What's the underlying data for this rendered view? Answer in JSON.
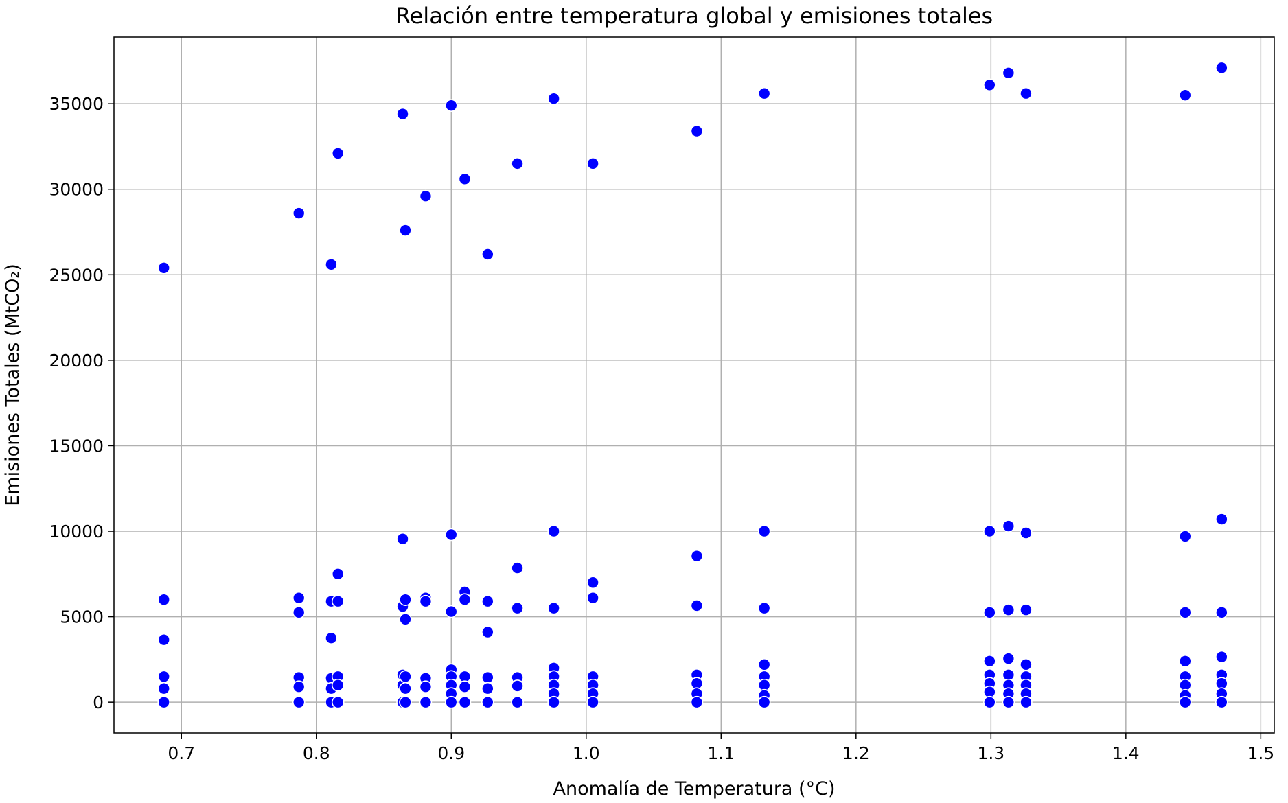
{
  "chart_data": {
    "type": "scatter",
    "title": "Relación entre temperatura global y emisiones totales",
    "xlabel": "Anomalía de Temperatura (°C)",
    "ylabel": "Emisiones Totales (MtCO₂)",
    "xlim": [
      0.65,
      1.51
    ],
    "ylim": [
      -1800,
      38900
    ],
    "xticks": [
      0.7,
      0.8,
      0.9,
      1.0,
      1.1,
      1.2,
      1.3,
      1.4,
      1.5
    ],
    "xtick_labels": [
      "0.7",
      "0.8",
      "0.9",
      "1.0",
      "1.1",
      "1.2",
      "1.3",
      "1.4",
      "1.5"
    ],
    "yticks": [
      0,
      5000,
      10000,
      15000,
      20000,
      25000,
      30000,
      35000
    ],
    "ytick_labels": [
      "0",
      "5000",
      "10000",
      "15000",
      "20000",
      "25000",
      "30000",
      "35000"
    ],
    "grid": true,
    "color": "#0000ff",
    "points": [
      [
        0.687,
        25400
      ],
      [
        0.687,
        6000
      ],
      [
        0.687,
        3650
      ],
      [
        0.687,
        1500
      ],
      [
        0.687,
        800
      ],
      [
        0.687,
        0
      ],
      [
        0.787,
        28600
      ],
      [
        0.787,
        6100
      ],
      [
        0.787,
        5250
      ],
      [
        0.787,
        1450
      ],
      [
        0.787,
        900
      ],
      [
        0.787,
        0
      ],
      [
        0.811,
        25600
      ],
      [
        0.811,
        5900
      ],
      [
        0.811,
        3750
      ],
      [
        0.811,
        1400
      ],
      [
        0.811,
        800
      ],
      [
        0.811,
        0
      ],
      [
        0.816,
        32100
      ],
      [
        0.816,
        7500
      ],
      [
        0.816,
        5900
      ],
      [
        0.816,
        1500
      ],
      [
        0.816,
        1000
      ],
      [
        0.816,
        0
      ],
      [
        0.864,
        34400
      ],
      [
        0.864,
        9550
      ],
      [
        0.864,
        5600
      ],
      [
        0.864,
        1600
      ],
      [
        0.864,
        1000
      ],
      [
        0.864,
        0
      ],
      [
        0.866,
        27600
      ],
      [
        0.866,
        6000
      ],
      [
        0.866,
        4850
      ],
      [
        0.866,
        1500
      ],
      [
        0.866,
        800
      ],
      [
        0.866,
        0
      ],
      [
        0.881,
        29600
      ],
      [
        0.881,
        6100
      ],
      [
        0.881,
        5900
      ],
      [
        0.881,
        1400
      ],
      [
        0.881,
        900
      ],
      [
        0.881,
        0
      ],
      [
        0.9,
        34900
      ],
      [
        0.9,
        9800
      ],
      [
        0.9,
        5300
      ],
      [
        0.9,
        1900
      ],
      [
        0.9,
        1500
      ],
      [
        0.9,
        1000
      ],
      [
        0.9,
        500
      ],
      [
        0.9,
        0
      ],
      [
        0.91,
        30600
      ],
      [
        0.91,
        6450
      ],
      [
        0.91,
        6000
      ],
      [
        0.91,
        1500
      ],
      [
        0.91,
        900
      ],
      [
        0.91,
        0
      ],
      [
        0.927,
        26200
      ],
      [
        0.927,
        5900
      ],
      [
        0.927,
        4100
      ],
      [
        0.927,
        1450
      ],
      [
        0.927,
        800
      ],
      [
        0.927,
        0
      ],
      [
        0.949,
        31500
      ],
      [
        0.949,
        7850
      ],
      [
        0.949,
        5500
      ],
      [
        0.949,
        1450
      ],
      [
        0.949,
        950
      ],
      [
        0.949,
        0
      ],
      [
        0.976,
        35300
      ],
      [
        0.976,
        10000
      ],
      [
        0.976,
        5500
      ],
      [
        0.976,
        2000
      ],
      [
        0.976,
        1500
      ],
      [
        0.976,
        1000
      ],
      [
        0.976,
        500
      ],
      [
        0.976,
        0
      ],
      [
        1.005,
        31500
      ],
      [
        1.005,
        7000
      ],
      [
        1.005,
        6100
      ],
      [
        1.005,
        1500
      ],
      [
        1.005,
        1000
      ],
      [
        1.005,
        500
      ],
      [
        1.005,
        0
      ],
      [
        1.082,
        33400
      ],
      [
        1.082,
        8550
      ],
      [
        1.082,
        5650
      ],
      [
        1.082,
        1600
      ],
      [
        1.082,
        1100
      ],
      [
        1.082,
        500
      ],
      [
        1.082,
        0
      ],
      [
        1.132,
        35600
      ],
      [
        1.132,
        10000
      ],
      [
        1.132,
        5500
      ],
      [
        1.132,
        2200
      ],
      [
        1.132,
        1500
      ],
      [
        1.132,
        1000
      ],
      [
        1.132,
        400
      ],
      [
        1.132,
        0
      ],
      [
        1.299,
        36100
      ],
      [
        1.299,
        10000
      ],
      [
        1.299,
        5250
      ],
      [
        1.299,
        2400
      ],
      [
        1.299,
        1600
      ],
      [
        1.299,
        1100
      ],
      [
        1.299,
        600
      ],
      [
        1.299,
        0
      ],
      [
        1.313,
        36800
      ],
      [
        1.313,
        10300
      ],
      [
        1.313,
        5400
      ],
      [
        1.313,
        2550
      ],
      [
        1.313,
        1600
      ],
      [
        1.313,
        1000
      ],
      [
        1.313,
        500
      ],
      [
        1.313,
        0
      ],
      [
        1.326,
        35600
      ],
      [
        1.326,
        9900
      ],
      [
        1.326,
        5400
      ],
      [
        1.326,
        2200
      ],
      [
        1.326,
        1500
      ],
      [
        1.326,
        1000
      ],
      [
        1.326,
        500
      ],
      [
        1.326,
        0
      ],
      [
        1.444,
        35500
      ],
      [
        1.444,
        9700
      ],
      [
        1.444,
        5250
      ],
      [
        1.444,
        2400
      ],
      [
        1.444,
        1500
      ],
      [
        1.444,
        1000
      ],
      [
        1.444,
        400
      ],
      [
        1.444,
        0
      ],
      [
        1.471,
        37100
      ],
      [
        1.471,
        10700
      ],
      [
        1.471,
        5250
      ],
      [
        1.471,
        2650
      ],
      [
        1.471,
        1600
      ],
      [
        1.471,
        1100
      ],
      [
        1.471,
        500
      ],
      [
        1.471,
        0
      ]
    ]
  }
}
